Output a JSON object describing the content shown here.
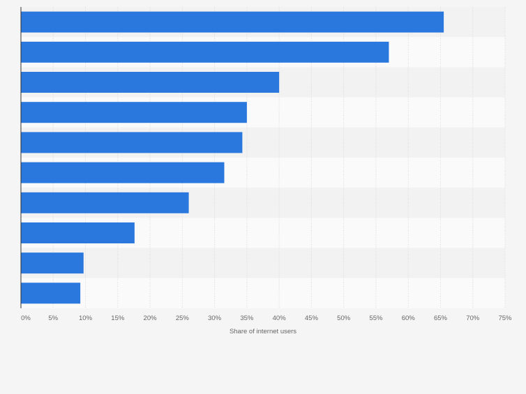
{
  "chart_data": {
    "type": "bar",
    "orientation": "horizontal",
    "title": "",
    "categories": [
      "",
      "",
      "",
      "",
      "",
      "",
      "",
      "",
      "",
      ""
    ],
    "values": [
      65.5,
      57,
      40,
      35,
      34.3,
      31.5,
      26,
      17.6,
      9.7,
      9.2
    ],
    "xlabel": "Share of internet users",
    "ylabel": "",
    "xlim": [
      0,
      75
    ],
    "x_ticks": [
      "0%",
      "5%",
      "10%",
      "15%",
      "20%",
      "25%",
      "30%",
      "35%",
      "40%",
      "45%",
      "50%",
      "55%",
      "60%",
      "65%",
      "70%",
      "75%"
    ],
    "grid": true,
    "legend": "none",
    "colors": {
      "bar": "#2a77de",
      "band_dark": "#f2f2f2",
      "band_light": "#fafafa",
      "grid": "#dcdcdc",
      "axis": "#333333",
      "text": "#666666",
      "background": "#f5f5f5"
    }
  }
}
